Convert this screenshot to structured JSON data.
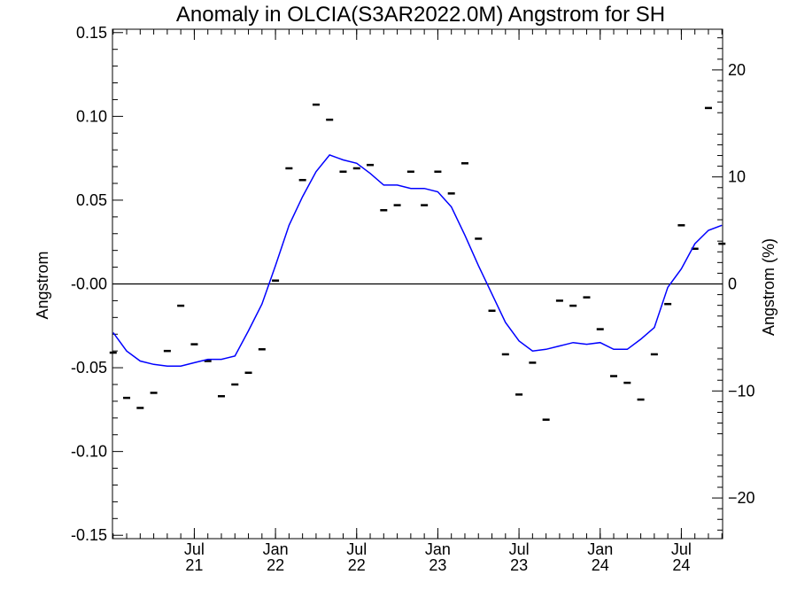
{
  "chart_data": {
    "type": "line",
    "title": "Anomaly in OLCIA(S3AR2022.0M) Angstrom for SH",
    "ylabel": "Angstrom",
    "y2label": "Angstrom (%)",
    "ylim": [
      -0.152,
      0.152
    ],
    "y2lim": [
      -23.8,
      23.8
    ],
    "xlim": [
      "2021-01",
      "2024-10"
    ],
    "yticks": [
      "0.15",
      "0.10",
      "0.05",
      "-0.00",
      "-0.05",
      "-0.10",
      "-0.15"
    ],
    "yticks_values": [
      0.15,
      0.1,
      0.05,
      0.0,
      -0.05,
      -0.1,
      -0.15
    ],
    "y2ticks": [
      "20",
      "10",
      "0",
      "−10",
      "−20"
    ],
    "y2ticks_values": [
      20,
      10,
      0,
      -10,
      -20
    ],
    "xticks": [
      {
        "x": "2021-07",
        "month": "Jul",
        "year": "21"
      },
      {
        "x": "2022-01",
        "month": "Jan",
        "year": "22"
      },
      {
        "x": "2022-07",
        "month": "Jul",
        "year": "22"
      },
      {
        "x": "2023-01",
        "month": "Jan",
        "year": "23"
      },
      {
        "x": "2023-07",
        "month": "Jul",
        "year": "23"
      },
      {
        "x": "2024-01",
        "month": "Jan",
        "year": "24"
      },
      {
        "x": "2024-07",
        "month": "Jul",
        "year": "24"
      }
    ],
    "zero_line": 0,
    "grid": false,
    "series": [
      {
        "kind": "monthly-anomaly-markers",
        "color": "#000000",
        "points": [
          {
            "x": "2021-01",
            "y": -0.041
          },
          {
            "x": "2021-02",
            "y": -0.068
          },
          {
            "x": "2021-03",
            "y": -0.074
          },
          {
            "x": "2021-04",
            "y": -0.065
          },
          {
            "x": "2021-05",
            "y": -0.04
          },
          {
            "x": "2021-06",
            "y": -0.013
          },
          {
            "x": "2021-07",
            "y": -0.036
          },
          {
            "x": "2021-08",
            "y": -0.046
          },
          {
            "x": "2021-09",
            "y": -0.067
          },
          {
            "x": "2021-10",
            "y": -0.06
          },
          {
            "x": "2021-11",
            "y": -0.053
          },
          {
            "x": "2021-12",
            "y": -0.039
          },
          {
            "x": "2022-01",
            "y": 0.002
          },
          {
            "x": "2022-02",
            "y": 0.069
          },
          {
            "x": "2022-03",
            "y": 0.062
          },
          {
            "x": "2022-04",
            "y": 0.107
          },
          {
            "x": "2022-05",
            "y": 0.098
          },
          {
            "x": "2022-06",
            "y": 0.067
          },
          {
            "x": "2022-07",
            "y": 0.069
          },
          {
            "x": "2022-08",
            "y": 0.071
          },
          {
            "x": "2022-09",
            "y": 0.044
          },
          {
            "x": "2022-10",
            "y": 0.047
          },
          {
            "x": "2022-11",
            "y": 0.067
          },
          {
            "x": "2022-12",
            "y": 0.047
          },
          {
            "x": "2023-01",
            "y": 0.067
          },
          {
            "x": "2023-02",
            "y": 0.054
          },
          {
            "x": "2023-03",
            "y": 0.072
          },
          {
            "x": "2023-04",
            "y": 0.027
          },
          {
            "x": "2023-05",
            "y": -0.016
          },
          {
            "x": "2023-06",
            "y": -0.042
          },
          {
            "x": "2023-07",
            "y": -0.066
          },
          {
            "x": "2023-08",
            "y": -0.047
          },
          {
            "x": "2023-09",
            "y": -0.081
          },
          {
            "x": "2023-10",
            "y": -0.01
          },
          {
            "x": "2023-11",
            "y": -0.013
          },
          {
            "x": "2023-12",
            "y": -0.008
          },
          {
            "x": "2024-01",
            "y": -0.027
          },
          {
            "x": "2024-02",
            "y": -0.055
          },
          {
            "x": "2024-03",
            "y": -0.059
          },
          {
            "x": "2024-04",
            "y": -0.069
          },
          {
            "x": "2024-05",
            "y": -0.042
          },
          {
            "x": "2024-06",
            "y": -0.012
          },
          {
            "x": "2024-07",
            "y": 0.035
          },
          {
            "x": "2024-08",
            "y": 0.021
          },
          {
            "x": "2024-09",
            "y": 0.105
          },
          {
            "x": "2024-10",
            "y": 0.024
          }
        ]
      },
      {
        "kind": "smoothed-line",
        "color": "#0000ff",
        "points": [
          {
            "x": "2021-01",
            "y": -0.029
          },
          {
            "x": "2021-02",
            "y": -0.04
          },
          {
            "x": "2021-03",
            "y": -0.046
          },
          {
            "x": "2021-04",
            "y": -0.048
          },
          {
            "x": "2021-05",
            "y": -0.049
          },
          {
            "x": "2021-06",
            "y": -0.049
          },
          {
            "x": "2021-07",
            "y": -0.047
          },
          {
            "x": "2021-08",
            "y": -0.045
          },
          {
            "x": "2021-09",
            "y": -0.045
          },
          {
            "x": "2021-10",
            "y": -0.043
          },
          {
            "x": "2021-11",
            "y": -0.028
          },
          {
            "x": "2021-12",
            "y": -0.012
          },
          {
            "x": "2022-01",
            "y": 0.011
          },
          {
            "x": "2022-02",
            "y": 0.035
          },
          {
            "x": "2022-03",
            "y": 0.052
          },
          {
            "x": "2022-04",
            "y": 0.067
          },
          {
            "x": "2022-05",
            "y": 0.077
          },
          {
            "x": "2022-06",
            "y": 0.074
          },
          {
            "x": "2022-07",
            "y": 0.072
          },
          {
            "x": "2022-08",
            "y": 0.066
          },
          {
            "x": "2022-09",
            "y": 0.059
          },
          {
            "x": "2022-10",
            "y": 0.059
          },
          {
            "x": "2022-11",
            "y": 0.057
          },
          {
            "x": "2022-12",
            "y": 0.057
          },
          {
            "x": "2023-01",
            "y": 0.055
          },
          {
            "x": "2023-02",
            "y": 0.046
          },
          {
            "x": "2023-03",
            "y": 0.029
          },
          {
            "x": "2023-04",
            "y": 0.011
          },
          {
            "x": "2023-05",
            "y": -0.006
          },
          {
            "x": "2023-06",
            "y": -0.023
          },
          {
            "x": "2023-07",
            "y": -0.034
          },
          {
            "x": "2023-08",
            "y": -0.04
          },
          {
            "x": "2023-09",
            "y": -0.039
          },
          {
            "x": "2023-10",
            "y": -0.037
          },
          {
            "x": "2023-11",
            "y": -0.035
          },
          {
            "x": "2023-12",
            "y": -0.036
          },
          {
            "x": "2024-01",
            "y": -0.035
          },
          {
            "x": "2024-02",
            "y": -0.039
          },
          {
            "x": "2024-03",
            "y": -0.039
          },
          {
            "x": "2024-04",
            "y": -0.033
          },
          {
            "x": "2024-05",
            "y": -0.026
          },
          {
            "x": "2024-06",
            "y": -0.002
          },
          {
            "x": "2024-07",
            "y": 0.009
          },
          {
            "x": "2024-08",
            "y": 0.024
          },
          {
            "x": "2024-09",
            "y": 0.032
          },
          {
            "x": "2024-10",
            "y": 0.035
          }
        ]
      }
    ]
  }
}
